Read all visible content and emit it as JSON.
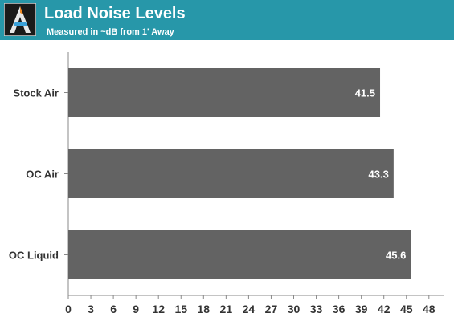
{
  "header": {
    "title": "Load Noise Levels",
    "subtitle": "Measured in ~dB from 1' Away",
    "background": "#2797a9"
  },
  "colors": {
    "bar": "#636363",
    "label": "#333333",
    "value_label": "#ffffff"
  },
  "chart_data": {
    "type": "bar",
    "orientation": "horizontal",
    "categories": [
      "Stock Air",
      "OC Air",
      "OC Liquid"
    ],
    "values": [
      41.5,
      43.3,
      45.6
    ],
    "xlim": [
      0,
      50
    ],
    "ticks": [
      0,
      3,
      6,
      9,
      12,
      15,
      18,
      21,
      24,
      27,
      30,
      33,
      36,
      39,
      42,
      45,
      48
    ],
    "grid": false,
    "title": "",
    "xlabel": "",
    "ylabel": ""
  }
}
